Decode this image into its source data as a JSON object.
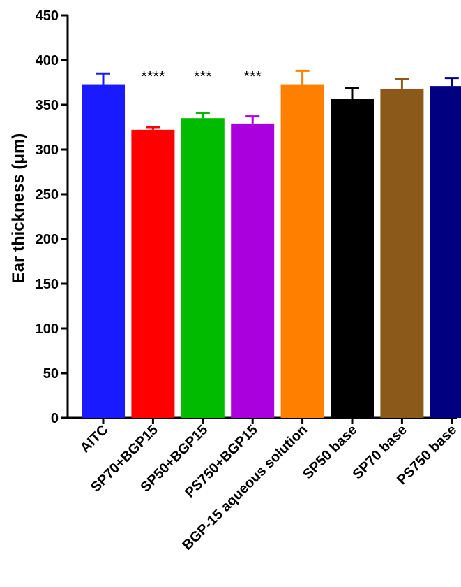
{
  "chart_data": {
    "type": "bar",
    "title": "",
    "xlabel": "",
    "ylabel": "Ear thickness (μm)",
    "ylim": [
      0,
      450
    ],
    "yticks": [
      0,
      50,
      100,
      150,
      200,
      250,
      300,
      350,
      400,
      450
    ],
    "categories": [
      "AITC",
      "SP70+BGP15",
      "SP50+BGP15",
      "PS750+BGP15",
      "BGP-15 aqueous solution",
      "SP50 base",
      "SP70 base",
      "PS750 base"
    ],
    "values": [
      373,
      322,
      335,
      329,
      373,
      357,
      368,
      371
    ],
    "errors": [
      12,
      3,
      6,
      8,
      15,
      12,
      11,
      9
    ],
    "significance": [
      "",
      "****",
      "***",
      "***",
      "",
      "",
      "",
      ""
    ],
    "colors": [
      "#1a1aff",
      "#ff0000",
      "#00bb00",
      "#aa00dd",
      "#ff8000",
      "#000000",
      "#8b5a1b",
      "#000080"
    ]
  }
}
